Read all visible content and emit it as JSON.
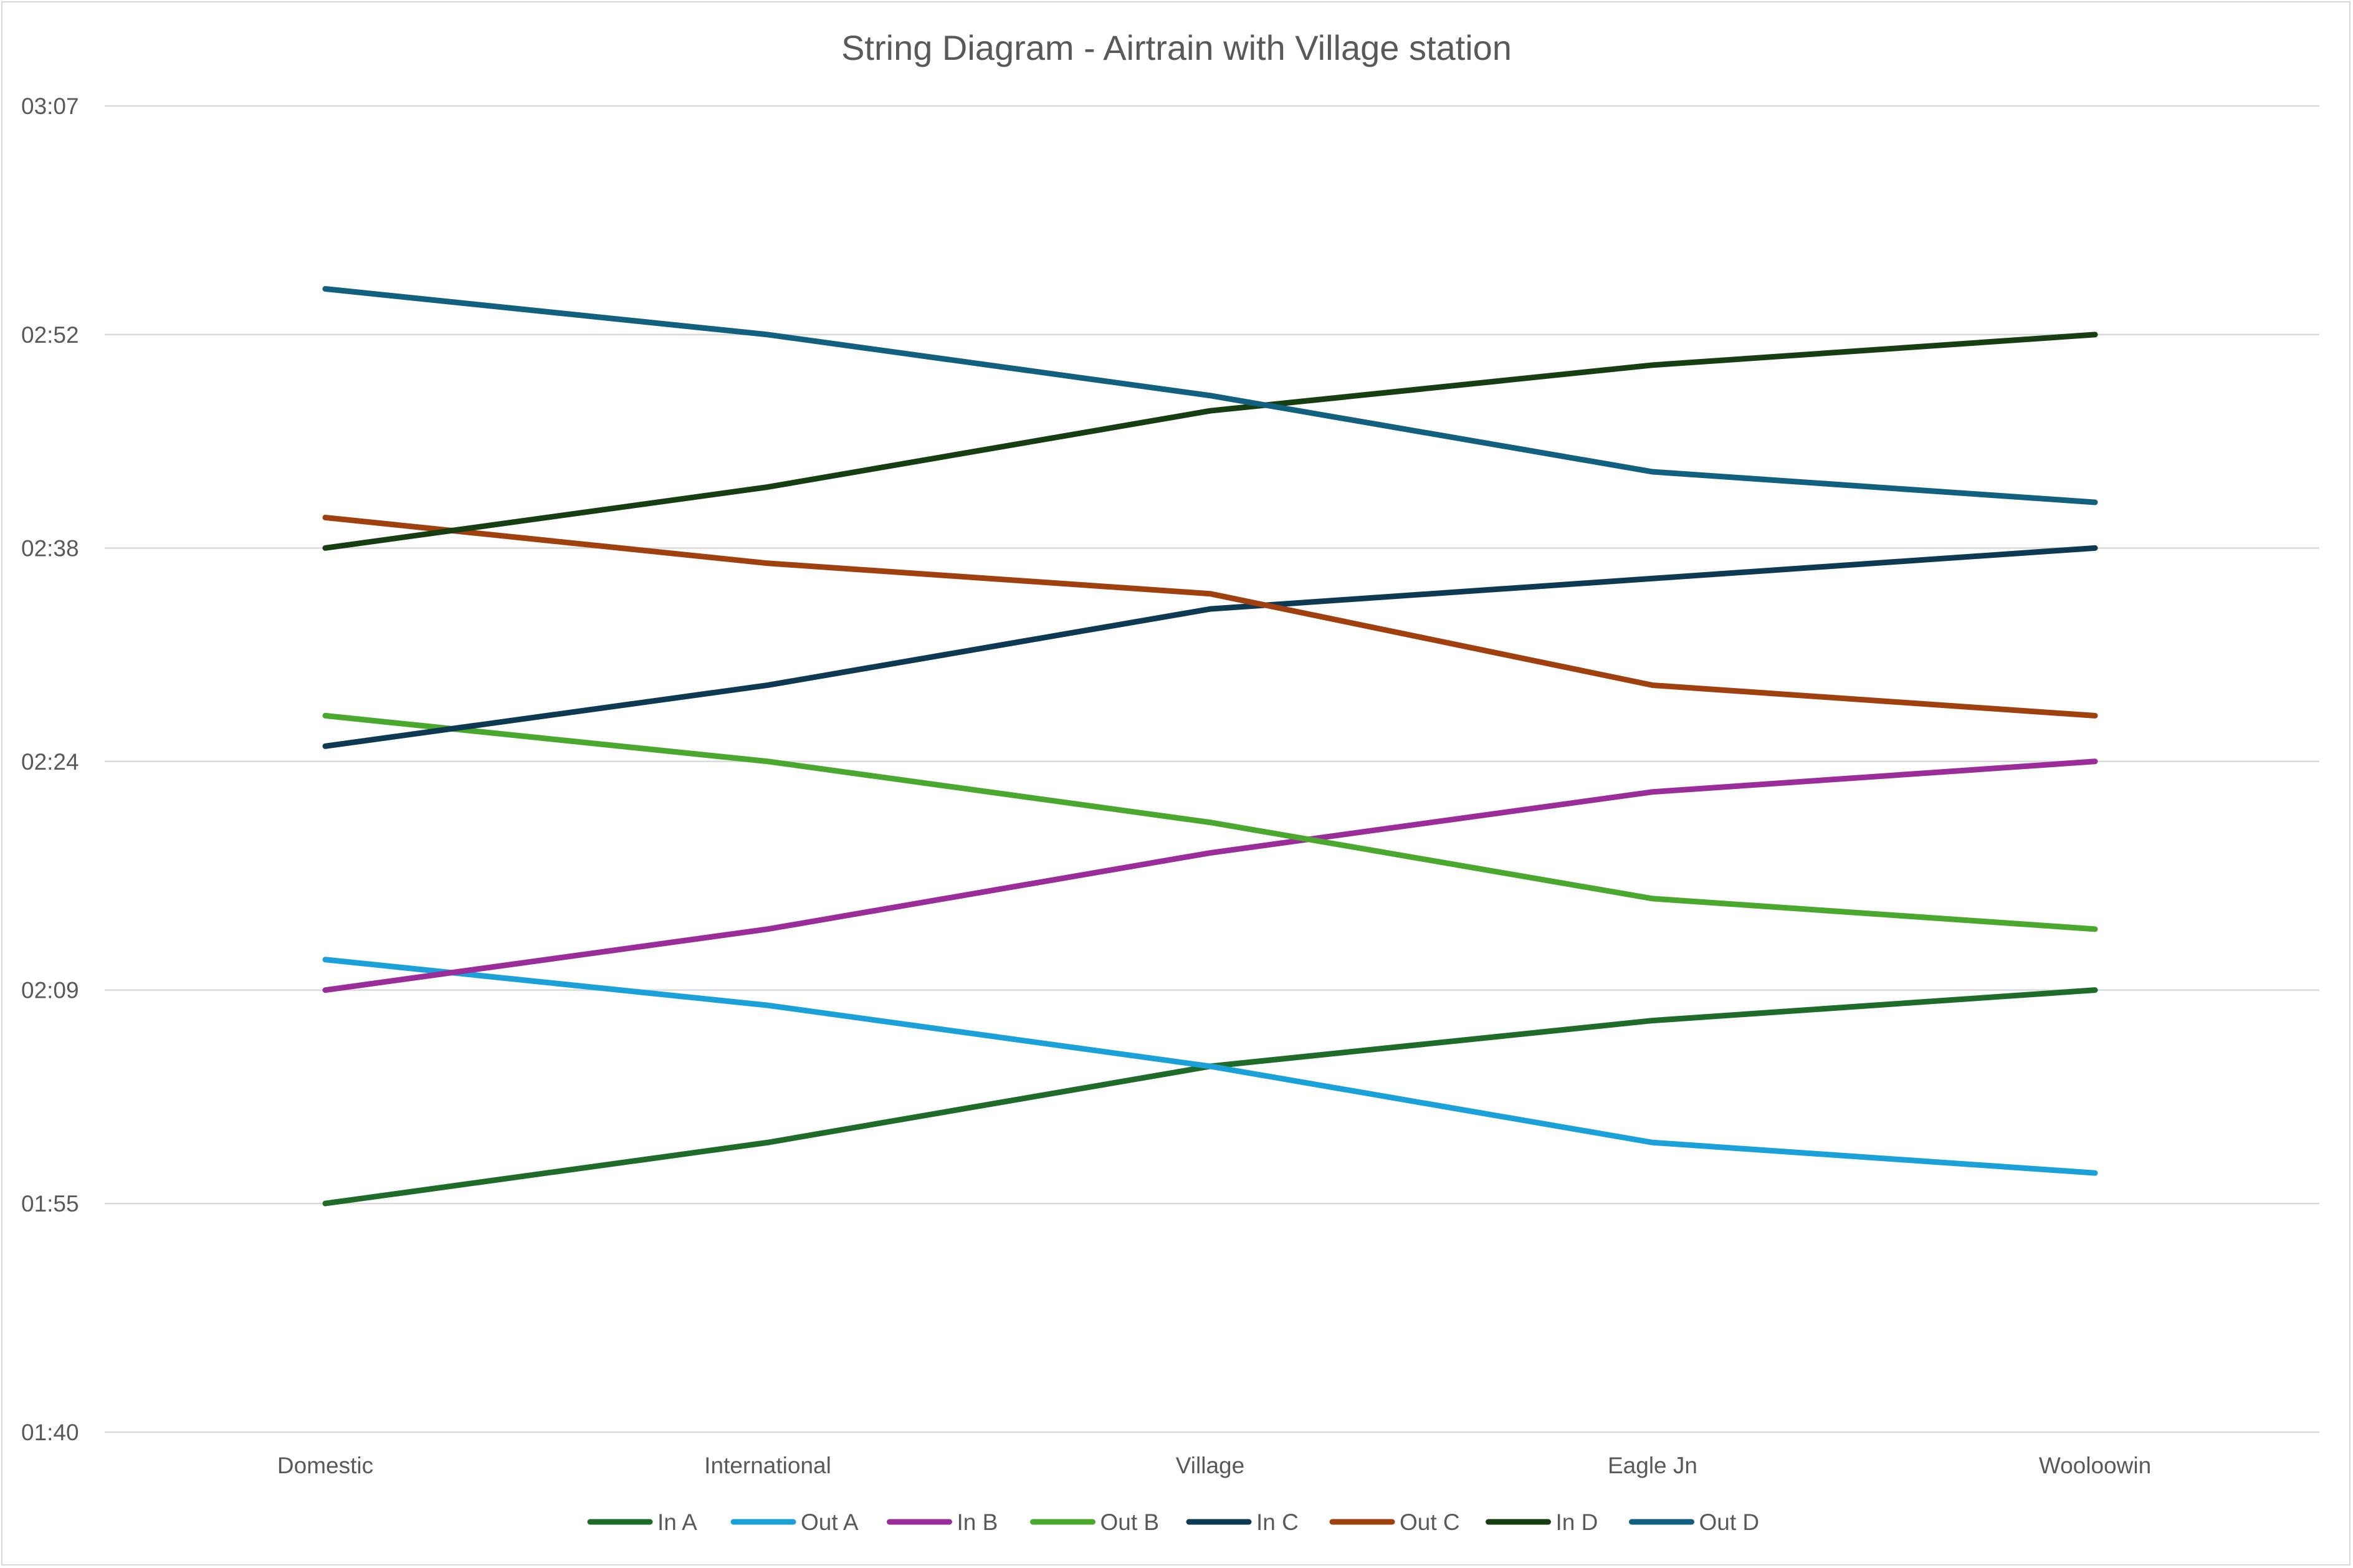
{
  "chart_data": {
    "type": "line",
    "title": "String Diagram - Airtrain with Village station",
    "xlabel": "",
    "ylabel": "",
    "categories": [
      "Domestic",
      "International",
      "Village",
      "Eagle Jn",
      "Wooloowin"
    ],
    "y_unit": "time (hh:mm)",
    "ylim": [
      "01:40",
      "03:07"
    ],
    "y_ticks": [
      "01:40",
      "01:55",
      "02:09",
      "02:24",
      "02:38",
      "02:52",
      "03:07"
    ],
    "grid": true,
    "legend_position": "bottom",
    "series": [
      {
        "name": "In A",
        "color": "#1e6b2a",
        "values": [
          "01:55",
          "01:59",
          "02:04",
          "02:07",
          "02:09"
        ]
      },
      {
        "name": "Out A",
        "color": "#1ba1d9",
        "values": [
          "02:11",
          "02:08",
          "02:04",
          "01:59",
          "01:57"
        ]
      },
      {
        "name": "In B",
        "color": "#9b2d9b",
        "values": [
          "02:09",
          "02:13",
          "02:18",
          "02:22",
          "02:24"
        ]
      },
      {
        "name": "Out B",
        "color": "#4aa82e",
        "values": [
          "02:27",
          "02:24",
          "02:20",
          "02:15",
          "02:13"
        ]
      },
      {
        "name": "In C",
        "color": "#0d3a52",
        "values": [
          "02:25",
          "02:29",
          "02:34",
          "02:36",
          "02:38"
        ]
      },
      {
        "name": "Out C",
        "color": "#a0400f",
        "values": [
          "02:40",
          "02:37",
          "02:35",
          "02:29",
          "02:27"
        ]
      },
      {
        "name": "In D",
        "color": "#173d12",
        "values": [
          "02:38",
          "02:42",
          "02:47",
          "02:50",
          "02:52"
        ]
      },
      {
        "name": "Out D",
        "color": "#126080",
        "values": [
          "02:55",
          "02:52",
          "02:48",
          "02:43",
          "02:41"
        ]
      }
    ]
  }
}
